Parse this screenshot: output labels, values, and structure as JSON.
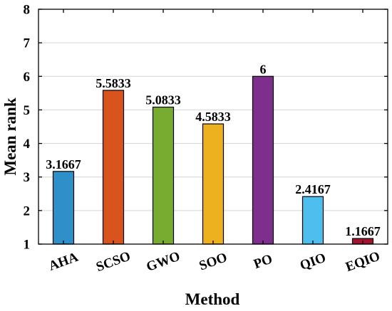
{
  "chart_data": {
    "type": "bar",
    "title": "",
    "xlabel": "Method",
    "ylabel": "Mean rank",
    "categories": [
      "AHA",
      "SCSO",
      "GWO",
      "SOO",
      "PO",
      "QIO",
      "EQIO"
    ],
    "values": [
      3.1667,
      5.5833,
      5.0833,
      4.5833,
      6,
      2.4167,
      1.1667
    ],
    "value_labels": [
      "3.1667",
      "5.5833",
      "5.0833",
      "4.5833",
      "6",
      "2.4167",
      "1.1667"
    ],
    "colors": [
      "#2E8FC9",
      "#D9531E",
      "#77AC30",
      "#EDB120",
      "#7E2F8E",
      "#4DBEEE",
      "#A2142F"
    ],
    "ylim": [
      1,
      8
    ],
    "yticks": [
      1,
      2,
      3,
      4,
      5,
      6,
      7,
      8
    ],
    "grid": true,
    "legend": "none"
  }
}
